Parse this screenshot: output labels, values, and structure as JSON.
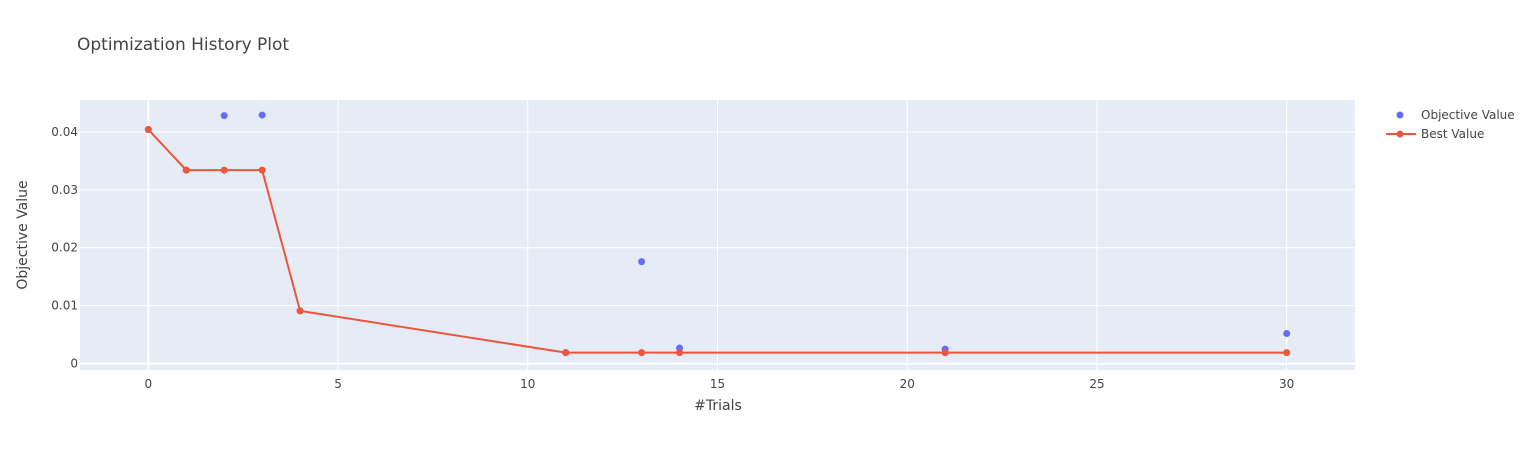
{
  "chart_data": {
    "type": "scatter",
    "title": "Optimization History Plot",
    "xlabel": "#Trials",
    "ylabel": "Objective Value",
    "xlim": [
      -1.8,
      31.8
    ],
    "ylim": [
      -0.0011,
      0.0455
    ],
    "x_ticks": [
      0,
      5,
      10,
      15,
      20,
      25,
      30
    ],
    "x_tick_labels": [
      "0",
      "5",
      "10",
      "15",
      "20",
      "25",
      "30"
    ],
    "y_ticks": [
      0,
      0.01,
      0.02,
      0.03,
      0.04
    ],
    "y_tick_labels": [
      "0",
      "0.01",
      "0.02",
      "0.03",
      "0.04"
    ],
    "grid": true,
    "legend_position": "top-right",
    "plot_background": "#e5ecf6",
    "series": [
      {
        "name": "Objective Value",
        "mode": "markers",
        "color": "#636efa",
        "x": [
          0,
          1,
          2,
          3,
          4,
          11,
          13,
          14,
          21,
          30
        ],
        "y": [
          0.0404,
          0.0334,
          0.0428,
          0.0429,
          0.0091,
          0.0019,
          0.0176,
          0.0027,
          0.0025,
          0.0052
        ]
      },
      {
        "name": "Best Value",
        "mode": "lines+markers",
        "color": "#ef553b",
        "x": [
          0,
          1,
          2,
          3,
          4,
          11,
          13,
          14,
          21,
          30
        ],
        "y": [
          0.0404,
          0.0334,
          0.0334,
          0.0334,
          0.0091,
          0.0019,
          0.0019,
          0.0019,
          0.0019,
          0.0019
        ]
      }
    ]
  }
}
